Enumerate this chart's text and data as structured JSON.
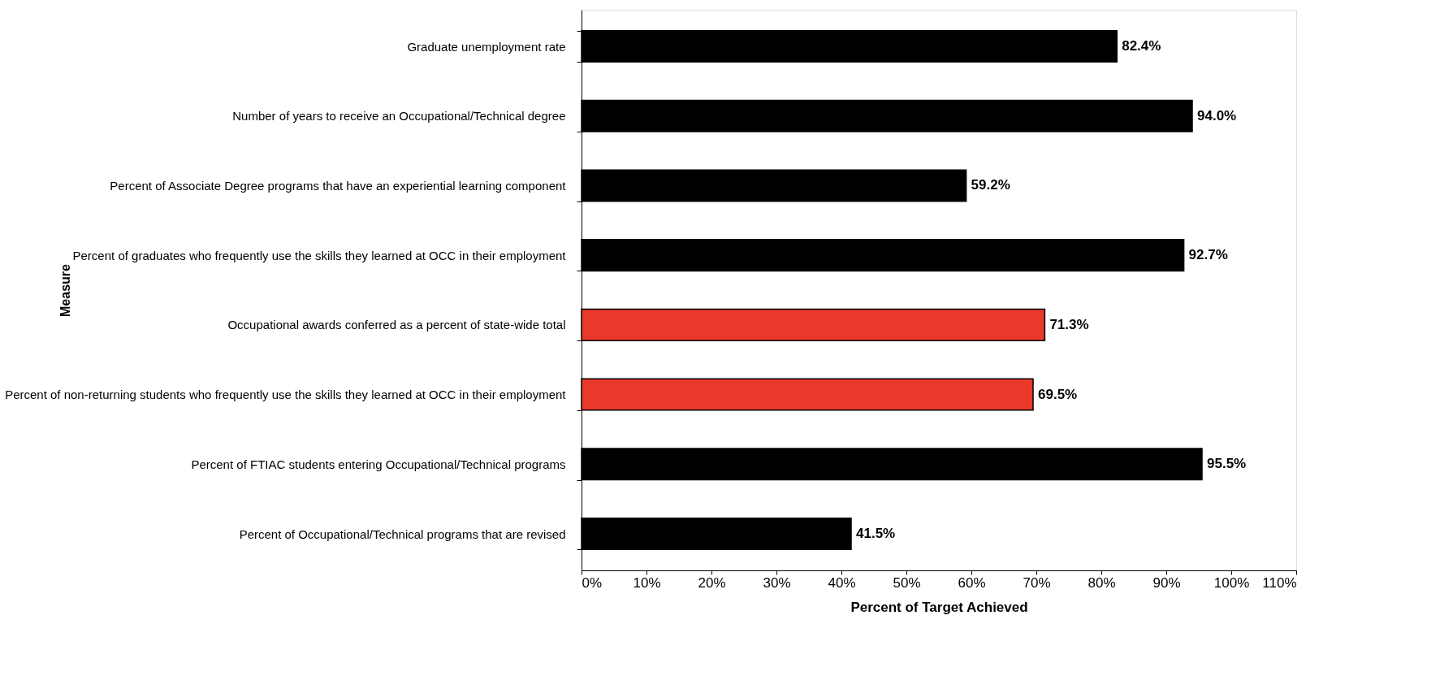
{
  "chart_data": {
    "type": "bar",
    "orientation": "horizontal",
    "xlabel": "Percent of Target Achieved",
    "ylabel": "Measure",
    "categories": [
      "Graduate unemployment rate",
      "Number of years to receive an Occupational/Technical degree",
      "Percent of Associate Degree programs that have an experiential learning component",
      "Percent of graduates who frequently use the skills they learned at OCC in their employment",
      "Occupational awards conferred as a percent of state-wide total",
      "Percent of non-returning students who frequently use the skills they learned at OCC in their employment",
      "Percent of FTIAC students entering Occupational/Technical programs",
      "Percent of Occupational/Technical programs that are revised"
    ],
    "values": [
      82.4,
      94.0,
      59.2,
      92.7,
      71.3,
      69.5,
      95.5,
      41.5
    ],
    "value_labels": [
      "82.4%",
      "94.0%",
      "59.2%",
      "92.7%",
      "71.3%",
      "69.5%",
      "95.5%",
      "41.5%"
    ],
    "colors": [
      "#000000",
      "#000000",
      "#000000",
      "#000000",
      "#e8392a",
      "#e8392a",
      "#000000",
      "#000000"
    ],
    "xlim": [
      0,
      110
    ],
    "xticks": [
      {
        "value": 0,
        "label": "0%"
      },
      {
        "value": 10,
        "label": "10%"
      },
      {
        "value": 20,
        "label": "20%"
      },
      {
        "value": 30,
        "label": "30%"
      },
      {
        "value": 40,
        "label": "40%"
      },
      {
        "value": 50,
        "label": "50%"
      },
      {
        "value": 60,
        "label": "60%"
      },
      {
        "value": 70,
        "label": "70%"
      },
      {
        "value": 80,
        "label": "80%"
      },
      {
        "value": 90,
        "label": "90%"
      },
      {
        "value": 100,
        "label": "100%"
      },
      {
        "value": 110,
        "label": "110%"
      }
    ],
    "grid": false
  }
}
